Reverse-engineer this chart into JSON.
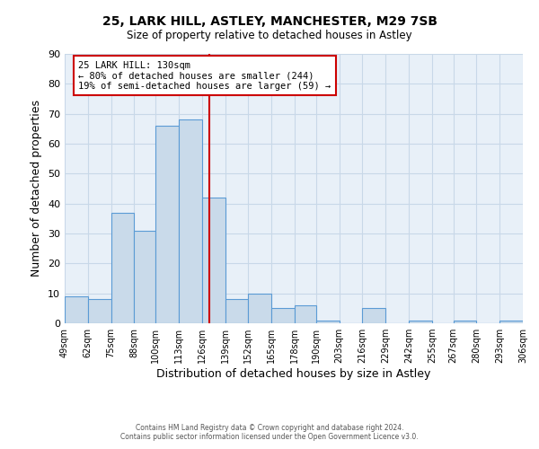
{
  "title": "25, LARK HILL, ASTLEY, MANCHESTER, M29 7SB",
  "subtitle": "Size of property relative to detached houses in Astley",
  "xlabel": "Distribution of detached houses by size in Astley",
  "ylabel": "Number of detached properties",
  "bin_edges": [
    49,
    62,
    75,
    88,
    100,
    113,
    126,
    139,
    152,
    165,
    178,
    190,
    203,
    216,
    229,
    242,
    255,
    267,
    280,
    293,
    306
  ],
  "bar_heights": [
    9,
    8,
    37,
    31,
    66,
    68,
    42,
    8,
    10,
    5,
    6,
    1,
    0,
    5,
    0,
    1,
    0,
    1,
    0,
    1
  ],
  "bar_color": "#c9daea",
  "bar_edge_color": "#5b9bd5",
  "vline_x": 130,
  "vline_color": "#cc0000",
  "ylim": [
    0,
    90
  ],
  "yticks": [
    0,
    10,
    20,
    30,
    40,
    50,
    60,
    70,
    80,
    90
  ],
  "xtick_labels": [
    "49sqm",
    "62sqm",
    "75sqm",
    "88sqm",
    "100sqm",
    "113sqm",
    "126sqm",
    "139sqm",
    "152sqm",
    "165sqm",
    "178sqm",
    "190sqm",
    "203sqm",
    "216sqm",
    "229sqm",
    "242sqm",
    "255sqm",
    "267sqm",
    "280sqm",
    "293sqm",
    "306sqm"
  ],
  "annotation_title": "25 LARK HILL: 130sqm",
  "annotation_line1": "← 80% of detached houses are smaller (244)",
  "annotation_line2": "19% of semi-detached houses are larger (59) →",
  "annotation_box_color": "#ffffff",
  "annotation_box_edge": "#cc0000",
  "grid_color": "#c8d8e8",
  "background_color": "#e8f0f8",
  "footer1": "Contains HM Land Registry data © Crown copyright and database right 2024.",
  "footer2": "Contains public sector information licensed under the Open Government Licence v3.0."
}
